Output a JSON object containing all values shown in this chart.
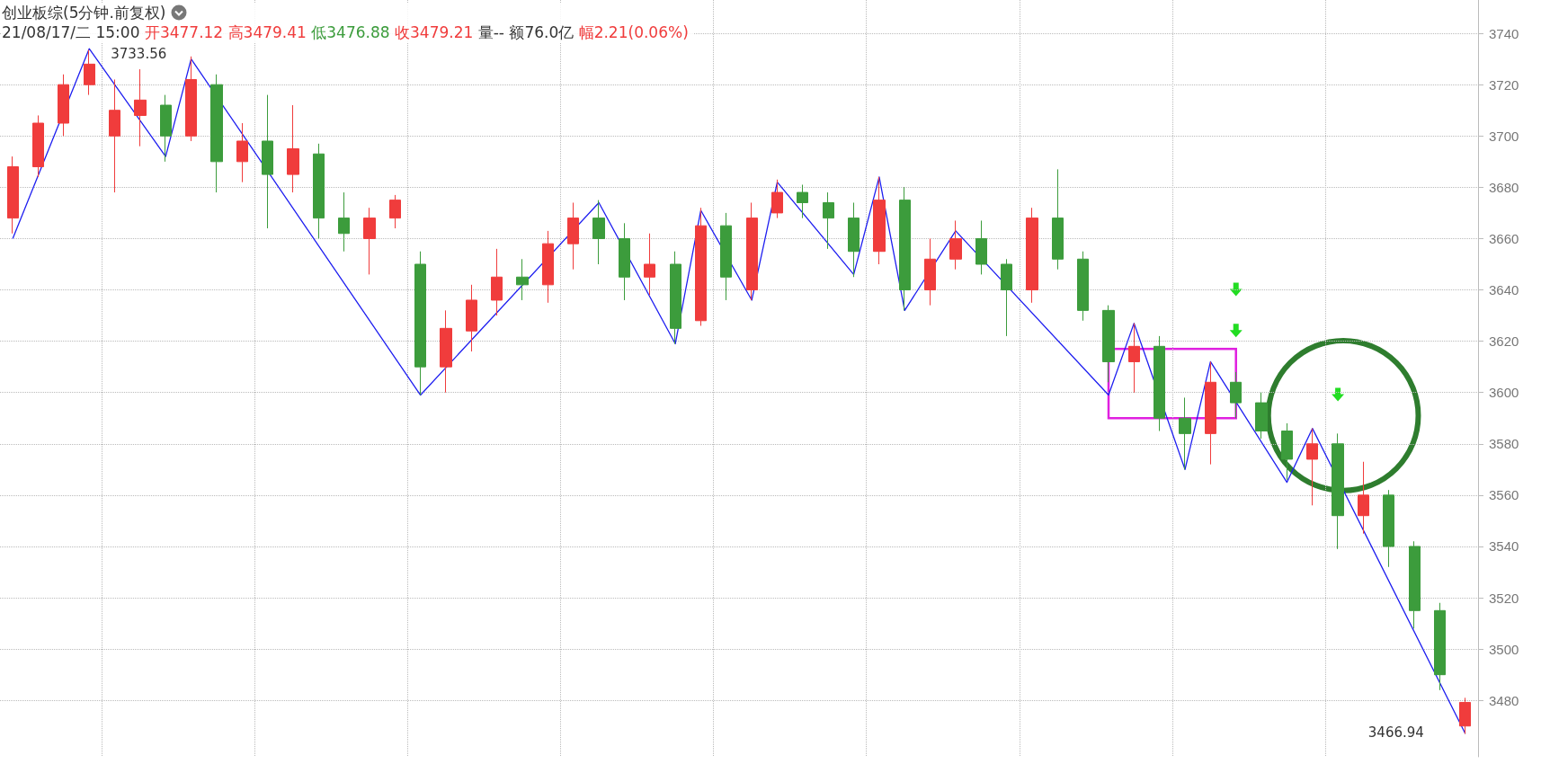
{
  "chart_data": {
    "type": "candlestick",
    "title": "创业板综(5分钟.前复权)",
    "categories": [
      null,
      null,
      null,
      null,
      null,
      null,
      null,
      null,
      null,
      null,
      null,
      null,
      null,
      null,
      null,
      null,
      null,
      null,
      null,
      null,
      null,
      null,
      null,
      null,
      null,
      null,
      null,
      null,
      null,
      null,
      null,
      null,
      null,
      null,
      null,
      null,
      null,
      null,
      null,
      null,
      null,
      null,
      null,
      null,
      null,
      null,
      null,
      null,
      null,
      null,
      null,
      null,
      null,
      null,
      null,
      null,
      null,
      null
    ],
    "series": [
      {
        "ohlc": [
          [
            3668,
            3692,
            3662,
            3688
          ],
          [
            3688,
            3708,
            3684,
            3705
          ],
          [
            3705,
            3724,
            3700,
            3720
          ],
          [
            3720,
            3733.56,
            3716,
            3728
          ],
          [
            3700,
            3722,
            3678,
            3710
          ],
          [
            3708,
            3726,
            3696,
            3714
          ],
          [
            3712,
            3716,
            3690,
            3700
          ],
          [
            3700,
            3731,
            3698,
            3722
          ],
          [
            3720,
            3724,
            3678,
            3690
          ],
          [
            3690,
            3705,
            3682,
            3698
          ],
          [
            3698,
            3716,
            3664,
            3685
          ],
          [
            3685,
            3712,
            3678,
            3695
          ],
          [
            3693,
            3697,
            3660,
            3668
          ],
          [
            3668,
            3678,
            3655,
            3662
          ],
          [
            3660,
            3672,
            3646,
            3668
          ],
          [
            3668,
            3677,
            3664,
            3675
          ],
          [
            3650,
            3655,
            3599,
            3610
          ],
          [
            3610,
            3632,
            3600,
            3625
          ],
          [
            3624,
            3642,
            3616,
            3636
          ],
          [
            3636,
            3656,
            3630,
            3645
          ],
          [
            3645,
            3652,
            3636,
            3642
          ],
          [
            3642,
            3663,
            3635,
            3658
          ],
          [
            3658,
            3674,
            3648,
            3668
          ],
          [
            3668,
            3675,
            3650,
            3660
          ],
          [
            3660,
            3666,
            3636,
            3645
          ],
          [
            3645,
            3662,
            3638,
            3650
          ],
          [
            3650,
            3655,
            3619,
            3625
          ],
          [
            3628,
            3672,
            3626,
            3665
          ],
          [
            3665,
            3670,
            3636,
            3645
          ],
          [
            3640,
            3674,
            3636,
            3668
          ],
          [
            3670,
            3683,
            3668,
            3678
          ],
          [
            3678,
            3681,
            3668,
            3674
          ],
          [
            3674,
            3678,
            3656,
            3668
          ],
          [
            3668,
            3674,
            3645,
            3655
          ],
          [
            3655,
            3684,
            3650,
            3675
          ],
          [
            3675,
            3680,
            3632,
            3640
          ],
          [
            3640,
            3660,
            3634,
            3652
          ],
          [
            3652,
            3667,
            3648,
            3660
          ],
          [
            3660,
            3667,
            3646,
            3650
          ],
          [
            3650,
            3652,
            3622,
            3640
          ],
          [
            3640,
            3672,
            3635,
            3668
          ],
          [
            3668,
            3687,
            3648,
            3652
          ],
          [
            3652,
            3655,
            3628,
            3632
          ],
          [
            3632,
            3634,
            3604,
            3612
          ],
          [
            3612,
            3627,
            3600,
            3618
          ],
          [
            3618,
            3622,
            3585,
            3590
          ],
          [
            3590,
            3598,
            3570,
            3584
          ],
          [
            3584,
            3612,
            3572,
            3604
          ],
          [
            3604,
            3608,
            3590,
            3596
          ],
          [
            3596,
            3600,
            3582,
            3585
          ],
          [
            3585,
            3588,
            3566,
            3574
          ],
          [
            3574,
            3586,
            3556,
            3580
          ],
          [
            3580,
            3584,
            3539,
            3552
          ],
          [
            3552,
            3573,
            3545,
            3560
          ],
          [
            3560,
            3562,
            3532,
            3540
          ],
          [
            3540,
            3542,
            3508,
            3515
          ],
          [
            3515,
            3518,
            3484,
            3490
          ],
          [
            3470,
            3481,
            3466.94,
            3479.21
          ]
        ],
        "colors": [
          "#f03c3c",
          "#f03c3c",
          "#f03c3c",
          "#f03c3c",
          "#f03c3c",
          "#f03c3c",
          "#3c9c3c",
          "#f03c3c",
          "#3c9c3c",
          "#f03c3c",
          "#3c9c3c",
          "#f03c3c",
          "#3c9c3c",
          "#3c9c3c",
          "#f03c3c",
          "#f03c3c",
          "#3c9c3c",
          "#f03c3c",
          "#f03c3c",
          "#f03c3c",
          "#3c9c3c",
          "#f03c3c",
          "#f03c3c",
          "#3c9c3c",
          "#3c9c3c",
          "#f03c3c",
          "#3c9c3c",
          "#f03c3c",
          "#3c9c3c",
          "#f03c3c",
          "#f03c3c",
          "#3c9c3c",
          "#3c9c3c",
          "#3c9c3c",
          "#f03c3c",
          "#3c9c3c",
          "#f03c3c",
          "#f03c3c",
          "#3c9c3c",
          "#3c9c3c",
          "#f03c3c",
          "#3c9c3c",
          "#3c9c3c",
          "#3c9c3c",
          "#f03c3c",
          "#3c9c3c",
          "#3c9c3c",
          "#f03c3c",
          "#3c9c3c",
          "#3c9c3c",
          "#3c9c3c",
          "#f03c3c",
          "#3c9c3c",
          "#f03c3c",
          "#3c9c3c",
          "#3c9c3c",
          "#3c9c3c",
          "#f03c3c"
        ]
      },
      {
        "type": "line",
        "color": "#1e1ef0",
        "values": [
          3660,
          null,
          null,
          3734,
          null,
          null,
          3692,
          3730,
          null,
          null,
          null,
          null,
          null,
          null,
          null,
          null,
          3599,
          null,
          null,
          null,
          null,
          null,
          null,
          3674,
          null,
          null,
          3619,
          3671,
          null,
          3636,
          3682,
          null,
          null,
          3646,
          3684,
          3632,
          null,
          3663,
          null,
          null,
          null,
          null,
          null,
          3599,
          3627,
          null,
          3570,
          3612,
          null,
          null,
          3565,
          3586,
          null,
          null,
          null,
          null,
          null,
          3467
        ]
      }
    ],
    "ylim": [
      3458,
      3753
    ],
    "yticks": [
      3480,
      3500,
      3520,
      3540,
      3560,
      3580,
      3600,
      3620,
      3640,
      3660,
      3680,
      3700,
      3720,
      3740
    ],
    "grid": true,
    "marker": "none",
    "annotations": [
      "21/08/17/二 15:00",
      "开3477.12",
      "高3479.41",
      "低3476.88",
      "收3479.21",
      "量--",
      "额76.0亿",
      "幅2.21(0.06%)",
      "3733.56",
      "3466.94"
    ]
  }
}
